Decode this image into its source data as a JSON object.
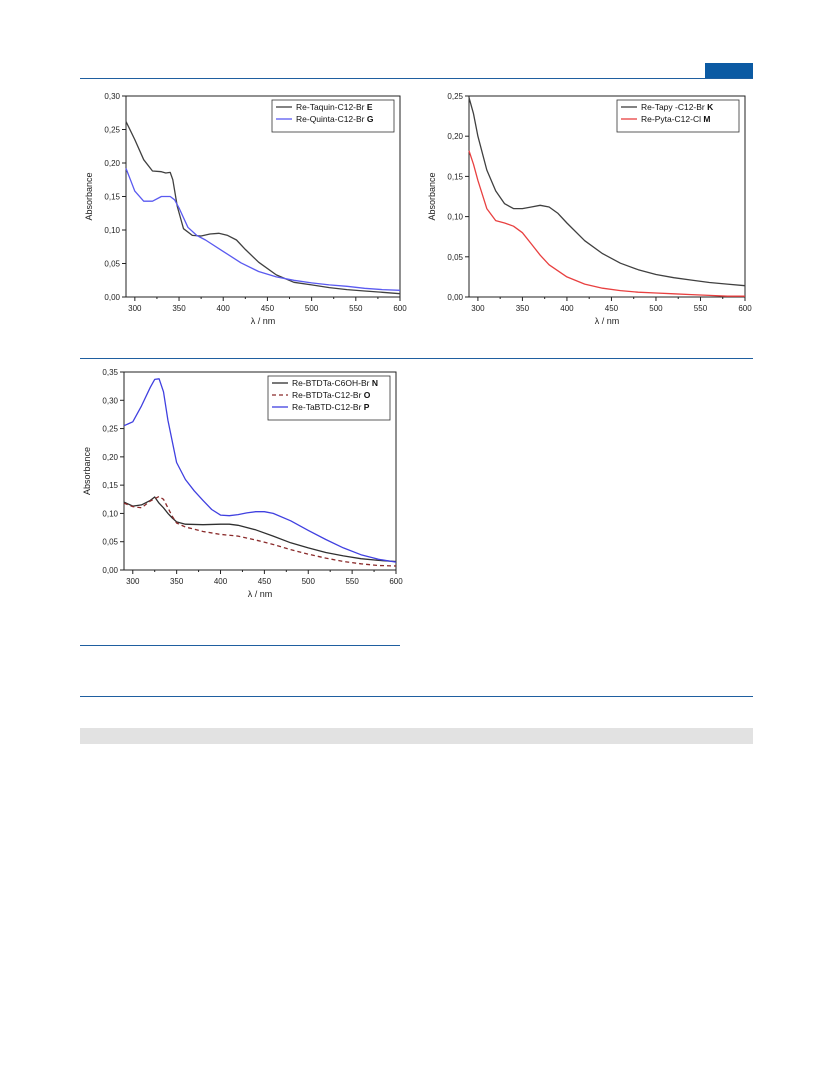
{
  "page": {
    "accent_color": "#1f5fa0",
    "tab_color": "#0b5aa3",
    "band_color": "#e2e2e2"
  },
  "chart_data": [
    {
      "type": "line",
      "id": "chart1",
      "xlabel": "λ / nm",
      "ylabel": "Absorbance",
      "xlim": [
        290,
        600
      ],
      "ylim": [
        0,
        0.3
      ],
      "xticks": [
        "300",
        "350",
        "400",
        "450",
        "500",
        "550",
        "600"
      ],
      "yticks": [
        "0,00",
        "0,05",
        "0,10",
        "0,15",
        "0,20",
        "0,25",
        "0,30"
      ],
      "legend_position": "top-right",
      "series": [
        {
          "name": "Re-Taquin-C12-Br",
          "name_bold": "E",
          "color": "#404040",
          "dash": "",
          "x": [
            290,
            300,
            310,
            320,
            330,
            335,
            340,
            343,
            348,
            355,
            365,
            375,
            385,
            395,
            405,
            415,
            425,
            440,
            460,
            480,
            500,
            520,
            540,
            560,
            580,
            600
          ],
          "y": [
            0.262,
            0.235,
            0.205,
            0.188,
            0.187,
            0.185,
            0.186,
            0.175,
            0.135,
            0.102,
            0.092,
            0.091,
            0.094,
            0.095,
            0.092,
            0.085,
            0.071,
            0.052,
            0.033,
            0.022,
            0.018,
            0.014,
            0.011,
            0.009,
            0.007,
            0.005
          ]
        },
        {
          "name": "Re-Quinta-C12-Br",
          "name_bold": "G",
          "color": "#5a5af0",
          "dash": "",
          "x": [
            290,
            295,
            300,
            310,
            320,
            330,
            340,
            345,
            350,
            360,
            370,
            380,
            400,
            420,
            440,
            460,
            480,
            500,
            520,
            540,
            560,
            580,
            600
          ],
          "y": [
            0.192,
            0.175,
            0.158,
            0.143,
            0.143,
            0.15,
            0.15,
            0.145,
            0.133,
            0.104,
            0.092,
            0.085,
            0.068,
            0.051,
            0.038,
            0.03,
            0.025,
            0.021,
            0.018,
            0.016,
            0.013,
            0.011,
            0.01
          ]
        }
      ]
    },
    {
      "type": "line",
      "id": "chart2",
      "xlabel": "λ / nm",
      "ylabel": "Absorbance",
      "xlim": [
        290,
        600
      ],
      "ylim": [
        0,
        0.25
      ],
      "xticks": [
        "300",
        "350",
        "400",
        "450",
        "500",
        "550",
        "600"
      ],
      "yticks": [
        "0,00",
        "0,05",
        "0,10",
        "0,15",
        "0,20",
        "0,25"
      ],
      "legend_position": "top-right",
      "series": [
        {
          "name": "Re-Tapy -C12-Br",
          "name_bold": "K",
          "color": "#404040",
          "dash": "",
          "x": [
            290,
            295,
            300,
            310,
            320,
            330,
            340,
            350,
            360,
            370,
            380,
            390,
            400,
            420,
            440,
            460,
            480,
            500,
            520,
            540,
            560,
            580,
            600
          ],
          "y": [
            0.248,
            0.228,
            0.2,
            0.158,
            0.132,
            0.116,
            0.11,
            0.11,
            0.112,
            0.114,
            0.112,
            0.104,
            0.092,
            0.07,
            0.054,
            0.042,
            0.034,
            0.028,
            0.024,
            0.021,
            0.018,
            0.016,
            0.014
          ]
        },
        {
          "name": "Re-Pyta-C12-Cl",
          "name_bold": "M",
          "color": "#e84040",
          "dash": "",
          "x": [
            290,
            295,
            300,
            310,
            320,
            330,
            340,
            350,
            360,
            370,
            380,
            400,
            420,
            440,
            460,
            480,
            500,
            520,
            540,
            560,
            580,
            600
          ],
          "y": [
            0.182,
            0.165,
            0.145,
            0.11,
            0.095,
            0.092,
            0.088,
            0.08,
            0.066,
            0.052,
            0.04,
            0.025,
            0.016,
            0.011,
            0.008,
            0.006,
            0.005,
            0.004,
            0.003,
            0.002,
            0.001,
            0.001
          ]
        }
      ]
    },
    {
      "type": "line",
      "id": "chart3",
      "xlabel": "λ / nm",
      "ylabel": "Absorbance",
      "xlim": [
        290,
        600
      ],
      "ylim": [
        0,
        0.35
      ],
      "xticks": [
        "300",
        "350",
        "400",
        "450",
        "500",
        "550",
        "600"
      ],
      "yticks": [
        "0,00",
        "0,05",
        "0,10",
        "0,15",
        "0,20",
        "0,25",
        "0,30",
        "0,35"
      ],
      "legend_position": "top-right",
      "series": [
        {
          "name": "Re-BTDTa-C6OH-Br",
          "name_bold": "N",
          "color": "#303030",
          "dash": "",
          "x": [
            290,
            300,
            310,
            320,
            325,
            330,
            335,
            340,
            345,
            350,
            360,
            380,
            400,
            410,
            420,
            440,
            460,
            480,
            500,
            520,
            540,
            560,
            580,
            600
          ],
          "y": [
            0.12,
            0.113,
            0.115,
            0.123,
            0.129,
            0.118,
            0.11,
            0.1,
            0.092,
            0.085,
            0.081,
            0.08,
            0.081,
            0.081,
            0.079,
            0.071,
            0.06,
            0.048,
            0.039,
            0.031,
            0.025,
            0.02,
            0.017,
            0.015
          ]
        },
        {
          "name": "Re-BTDTa-C12-Br",
          "name_bold": "O",
          "color": "#8a2a2a",
          "dash": "4,3",
          "x": [
            290,
            300,
            310,
            320,
            330,
            335,
            340,
            345,
            350,
            360,
            380,
            400,
            420,
            440,
            460,
            480,
            500,
            520,
            540,
            560,
            580,
            600
          ],
          "y": [
            0.118,
            0.112,
            0.11,
            0.122,
            0.13,
            0.125,
            0.11,
            0.095,
            0.083,
            0.076,
            0.068,
            0.063,
            0.06,
            0.053,
            0.045,
            0.036,
            0.028,
            0.021,
            0.015,
            0.011,
            0.008,
            0.007
          ]
        },
        {
          "name": "Re-TaBTD-C12-Br",
          "name_bold": "P",
          "color": "#4040e0",
          "dash": "",
          "x": [
            290,
            300,
            310,
            320,
            325,
            330,
            335,
            340,
            350,
            360,
            370,
            380,
            390,
            400,
            410,
            420,
            430,
            440,
            450,
            460,
            480,
            500,
            520,
            540,
            560,
            580,
            600
          ],
          "y": [
            0.255,
            0.262,
            0.29,
            0.323,
            0.337,
            0.338,
            0.315,
            0.265,
            0.19,
            0.16,
            0.14,
            0.123,
            0.107,
            0.097,
            0.096,
            0.098,
            0.101,
            0.103,
            0.103,
            0.1,
            0.087,
            0.07,
            0.054,
            0.039,
            0.027,
            0.019,
            0.014
          ]
        }
      ]
    }
  ]
}
